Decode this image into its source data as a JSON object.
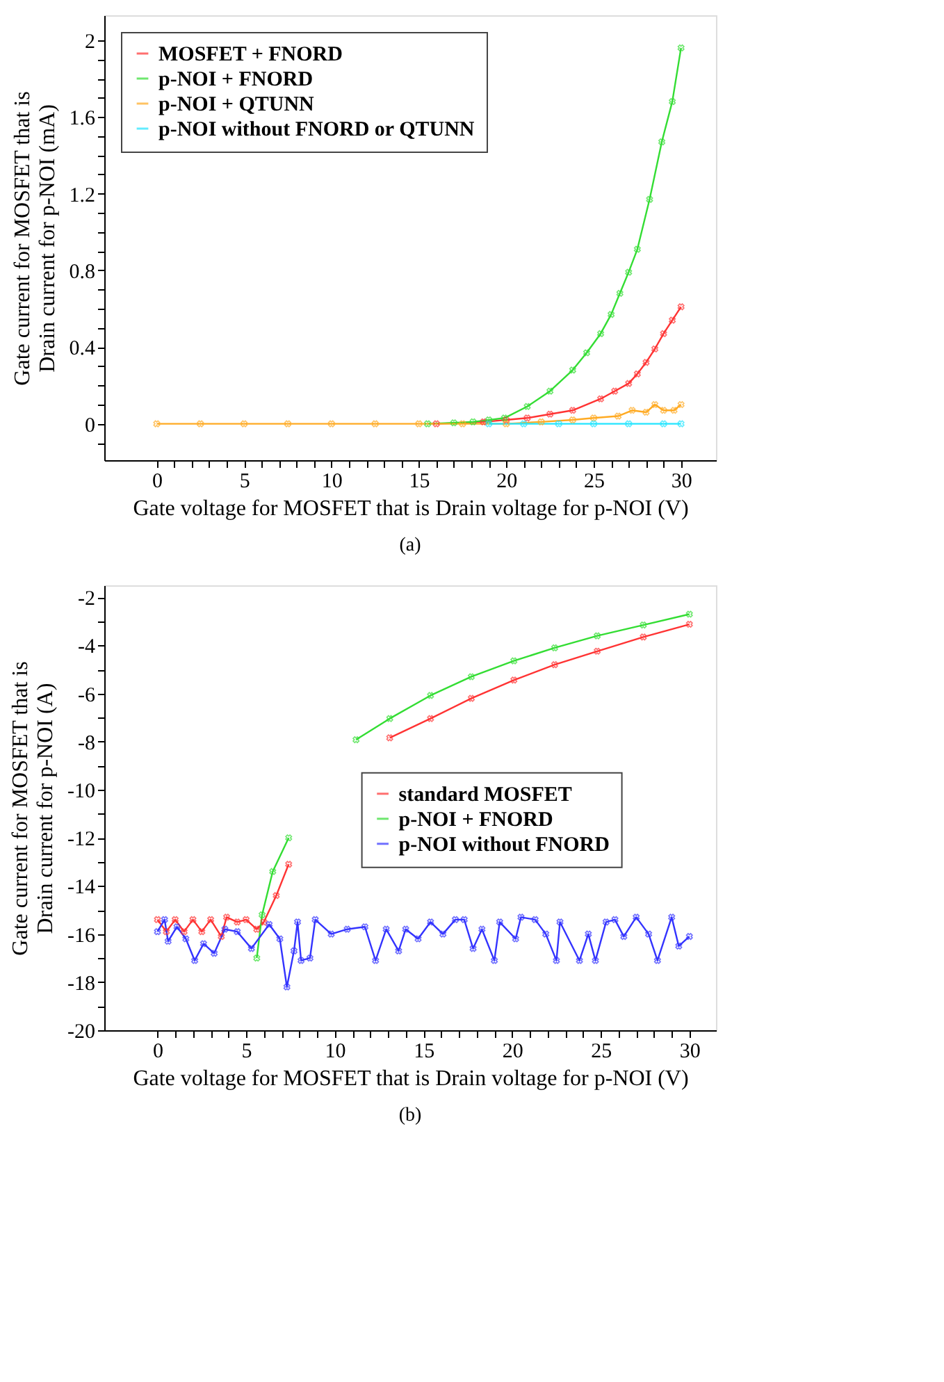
{
  "chart_data": [
    {
      "type": "line",
      "xlabel": "Gate voltage for MOSFET that is Drain voltage for p-NOI (V)",
      "ylabel": "Gate current for MOSFET that is\nDrain current for p-NOI (mA)",
      "annotations": [
        "(a)"
      ],
      "marker": "cross",
      "line_style": "solid",
      "legend": "top left",
      "grid": false,
      "xlim": [
        -3,
        32
      ],
      "ylim": [
        -0.19,
        2.13
      ],
      "xticks": [
        0,
        {
          "value": 1,
          "label": null
        },
        {
          "value": 2,
          "label": null
        },
        {
          "value": 3,
          "label": null
        },
        {
          "value": 4,
          "label": null
        },
        5,
        {
          "value": 6,
          "label": null
        },
        {
          "value": 7,
          "label": null
        },
        {
          "value": 8,
          "label": null
        },
        {
          "value": 9,
          "label": null
        },
        10,
        {
          "value": 11,
          "label": null
        },
        {
          "value": 12,
          "label": null
        },
        {
          "value": 13,
          "label": null
        },
        {
          "value": 14,
          "label": null
        },
        15,
        {
          "value": 16,
          "label": null
        },
        {
          "value": 17,
          "label": null
        },
        {
          "value": 18,
          "label": null
        },
        {
          "value": 19,
          "label": null
        },
        20,
        {
          "value": 21,
          "label": null
        },
        {
          "value": 22,
          "label": null
        },
        {
          "value": 23,
          "label": null
        },
        {
          "value": 24,
          "label": null
        },
        25,
        {
          "value": 26,
          "label": null
        },
        {
          "value": 27,
          "label": null
        },
        {
          "value": 28,
          "label": null
        },
        {
          "value": 29,
          "label": null
        },
        30
      ],
      "yticks": [
        {
          "value": -0.1,
          "label": null
        },
        0,
        {
          "value": 0.1,
          "label": null
        },
        {
          "value": 0.2,
          "label": null
        },
        {
          "value": 0.3,
          "label": null
        },
        0.4,
        {
          "value": 0.5,
          "label": null
        },
        {
          "value": 0.6,
          "label": null
        },
        {
          "value": 0.7,
          "label": null
        },
        0.8,
        {
          "value": 0.9,
          "label": null
        },
        {
          "value": 1.0,
          "label": null
        },
        {
          "value": 1.1,
          "label": null
        },
        1.2,
        {
          "value": 1.3,
          "label": null
        },
        {
          "value": 1.4,
          "label": null
        },
        {
          "value": 1.5,
          "label": null
        },
        1.6,
        {
          "value": 1.7,
          "label": null
        },
        {
          "value": 1.8,
          "label": null
        },
        {
          "value": 1.9,
          "label": null
        },
        2
      ],
      "series": [
        {
          "name": "MOSFET + FNORD",
          "color": "#ff3333",
          "x": [
            16,
            18.7,
            20,
            21.2,
            22.5,
            23.8,
            25.4,
            26.2,
            27,
            27.5,
            28,
            28.5,
            29,
            29.5,
            30
          ],
          "values": [
            0,
            0.01,
            0.02,
            0.03,
            0.05,
            0.07,
            0.13,
            0.17,
            0.21,
            0.26,
            0.32,
            0.39,
            0.47,
            0.54,
            0.61
          ]
        },
        {
          "name": "p-NOI + FNORD",
          "color": "#33dd33",
          "x": [
            15.5,
            17,
            18.1,
            19,
            19.9,
            21.2,
            22.5,
            23.8,
            24.6,
            25.4,
            26,
            26.5,
            27,
            27.5,
            28.2,
            28.9,
            29.5,
            30
          ],
          "values": [
            0,
            0.005,
            0.01,
            0.02,
            0.03,
            0.09,
            0.17,
            0.28,
            0.37,
            0.47,
            0.57,
            0.68,
            0.79,
            0.91,
            1.17,
            1.47,
            1.68,
            1.96
          ]
        },
        {
          "name": "p-NOI + QTUNN",
          "color": "#ffaa22",
          "x": [
            0,
            2.5,
            5,
            7.5,
            10,
            12.5,
            15,
            17.5,
            20,
            22,
            23.8,
            25,
            26.4,
            27.2,
            28,
            28.5,
            29,
            29.6,
            30
          ],
          "values": [
            0,
            0,
            0,
            0,
            0,
            0,
            0,
            0,
            0,
            0.01,
            0.02,
            0.03,
            0.04,
            0.07,
            0.06,
            0.1,
            0.07,
            0.07,
            0.1
          ]
        },
        {
          "name": "p-NOI without FNORD or QTUNN",
          "color": "#22e5ff",
          "x": [
            19,
            21,
            23,
            25,
            27,
            29,
            30
          ],
          "values": [
            0,
            0,
            0,
            0,
            0,
            0,
            0
          ]
        }
      ]
    },
    {
      "type": "line",
      "xlabel": "Gate voltage for MOSFET that is Drain voltage for p-NOI (V)",
      "ylabel": "Gate current for MOSFET that is\nDrain current for p-NOI (A)",
      "annotations": [
        "(b)"
      ],
      "marker": "cross",
      "line_style": "solid",
      "legend": "right",
      "grid": false,
      "xlim": [
        -3,
        31.5
      ],
      "ylim": [
        -20,
        -1.5
      ],
      "xticks": [
        0,
        {
          "value": 1,
          "label": null
        },
        {
          "value": 2,
          "label": null
        },
        {
          "value": 3,
          "label": null
        },
        {
          "value": 4,
          "label": null
        },
        5,
        {
          "value": 6,
          "label": null
        },
        {
          "value": 7,
          "label": null
        },
        {
          "value": 8,
          "label": null
        },
        {
          "value": 9,
          "label": null
        },
        10,
        {
          "value": 11,
          "label": null
        },
        {
          "value": 12,
          "label": null
        },
        {
          "value": 13,
          "label": null
        },
        {
          "value": 14,
          "label": null
        },
        15,
        {
          "value": 16,
          "label": null
        },
        {
          "value": 17,
          "label": null
        },
        {
          "value": 18,
          "label": null
        },
        {
          "value": 19,
          "label": null
        },
        20,
        {
          "value": 21,
          "label": null
        },
        {
          "value": 22,
          "label": null
        },
        {
          "value": 23,
          "label": null
        },
        {
          "value": 24,
          "label": null
        },
        25,
        {
          "value": 26,
          "label": null
        },
        {
          "value": 27,
          "label": null
        },
        {
          "value": 28,
          "label": null
        },
        {
          "value": 29,
          "label": null
        },
        30
      ],
      "yticks": [
        -20,
        {
          "value": -19,
          "label": null
        },
        -18,
        {
          "value": -17,
          "label": null
        },
        -16,
        {
          "value": -15,
          "label": null
        },
        -14,
        {
          "value": -13,
          "label": null
        },
        -12,
        {
          "value": -11,
          "label": null
        },
        -10,
        {
          "value": -9,
          "label": null
        },
        -8,
        {
          "value": -7,
          "label": null
        },
        -6,
        {
          "value": -5,
          "label": null
        },
        -4,
        {
          "value": -3,
          "label": null
        },
        -2
      ],
      "series": [
        {
          "name": "standard MOSFET",
          "color": "#ff3333",
          "x": [
            0,
            0.5,
            1,
            1.5,
            2,
            2.5,
            3,
            3.6,
            3.9,
            4.5,
            5,
            5.6,
            6,
            6.7,
            7.4,
            9,
            13.1,
            15.4,
            17.7,
            20.1,
            22.4,
            24.8,
            27.4,
            30
          ],
          "values": [
            -15.4,
            -15.9,
            -15.4,
            -15.9,
            -15.4,
            -15.9,
            -15.4,
            -16.1,
            -15.3,
            -15.5,
            -15.4,
            -15.8,
            -15.5,
            -14.4,
            -13.1,
            null,
            -7.84,
            -7.04,
            -6.2,
            -5.44,
            -4.8,
            -4.24,
            -3.65,
            -3.12
          ]
        },
        {
          "name": "p-NOI + FNORD",
          "color": "#33dd33",
          "x": [
            5.6,
            5.9,
            6.5,
            7.4,
            9,
            11.2,
            13.1,
            15.4,
            17.7,
            20.1,
            22.4,
            24.8,
            27.4,
            30
          ],
          "values": [
            -17.0,
            -15.2,
            -13.4,
            -12.0,
            null,
            -7.92,
            -7.04,
            -6.08,
            -5.3,
            -4.64,
            -4.1,
            -3.6,
            -3.15,
            -2.7
          ]
        },
        {
          "name": "p-NOI without FNORD",
          "color": "#3333ff",
          "x": [
            0,
            0.4,
            0.6,
            1.1,
            1.6,
            2.1,
            2.6,
            3.2,
            3.8,
            4.5,
            5.3,
            6.3,
            6.9,
            7.3,
            7.7,
            7.9,
            8.1,
            8.6,
            8.9,
            9.8,
            10.7,
            11.7,
            12.3,
            12.9,
            13.6,
            14.0,
            14.7,
            15.4,
            16.1,
            16.8,
            17.3,
            17.8,
            18.3,
            19.0,
            19.3,
            20.2,
            20.5,
            21.3,
            21.9,
            22.5,
            22.7,
            23.8,
            24.3,
            24.7,
            25.3,
            25.8,
            26.3,
            27.0,
            27.7,
            28.2,
            29.0,
            29.4,
            30.0
          ],
          "values": [
            -15.9,
            -15.4,
            -16.3,
            -15.7,
            -16.2,
            -17.1,
            -16.4,
            -16.8,
            -15.8,
            -15.9,
            -16.6,
            -15.6,
            -16.2,
            -18.2,
            -16.7,
            -15.5,
            -17.1,
            -17.0,
            -15.4,
            -16.0,
            -15.8,
            -15.7,
            -17.1,
            -15.8,
            -16.7,
            -15.8,
            -16.2,
            -15.5,
            -16.0,
            -15.4,
            -15.4,
            -16.6,
            -15.8,
            -17.1,
            -15.5,
            -16.2,
            -15.3,
            -15.4,
            -16.0,
            -17.1,
            -15.5,
            -17.1,
            -16.0,
            -17.1,
            -15.5,
            -15.4,
            -16.1,
            -15.3,
            -16.0,
            -17.1,
            -15.3,
            -16.5,
            -16.1
          ]
        }
      ]
    }
  ]
}
